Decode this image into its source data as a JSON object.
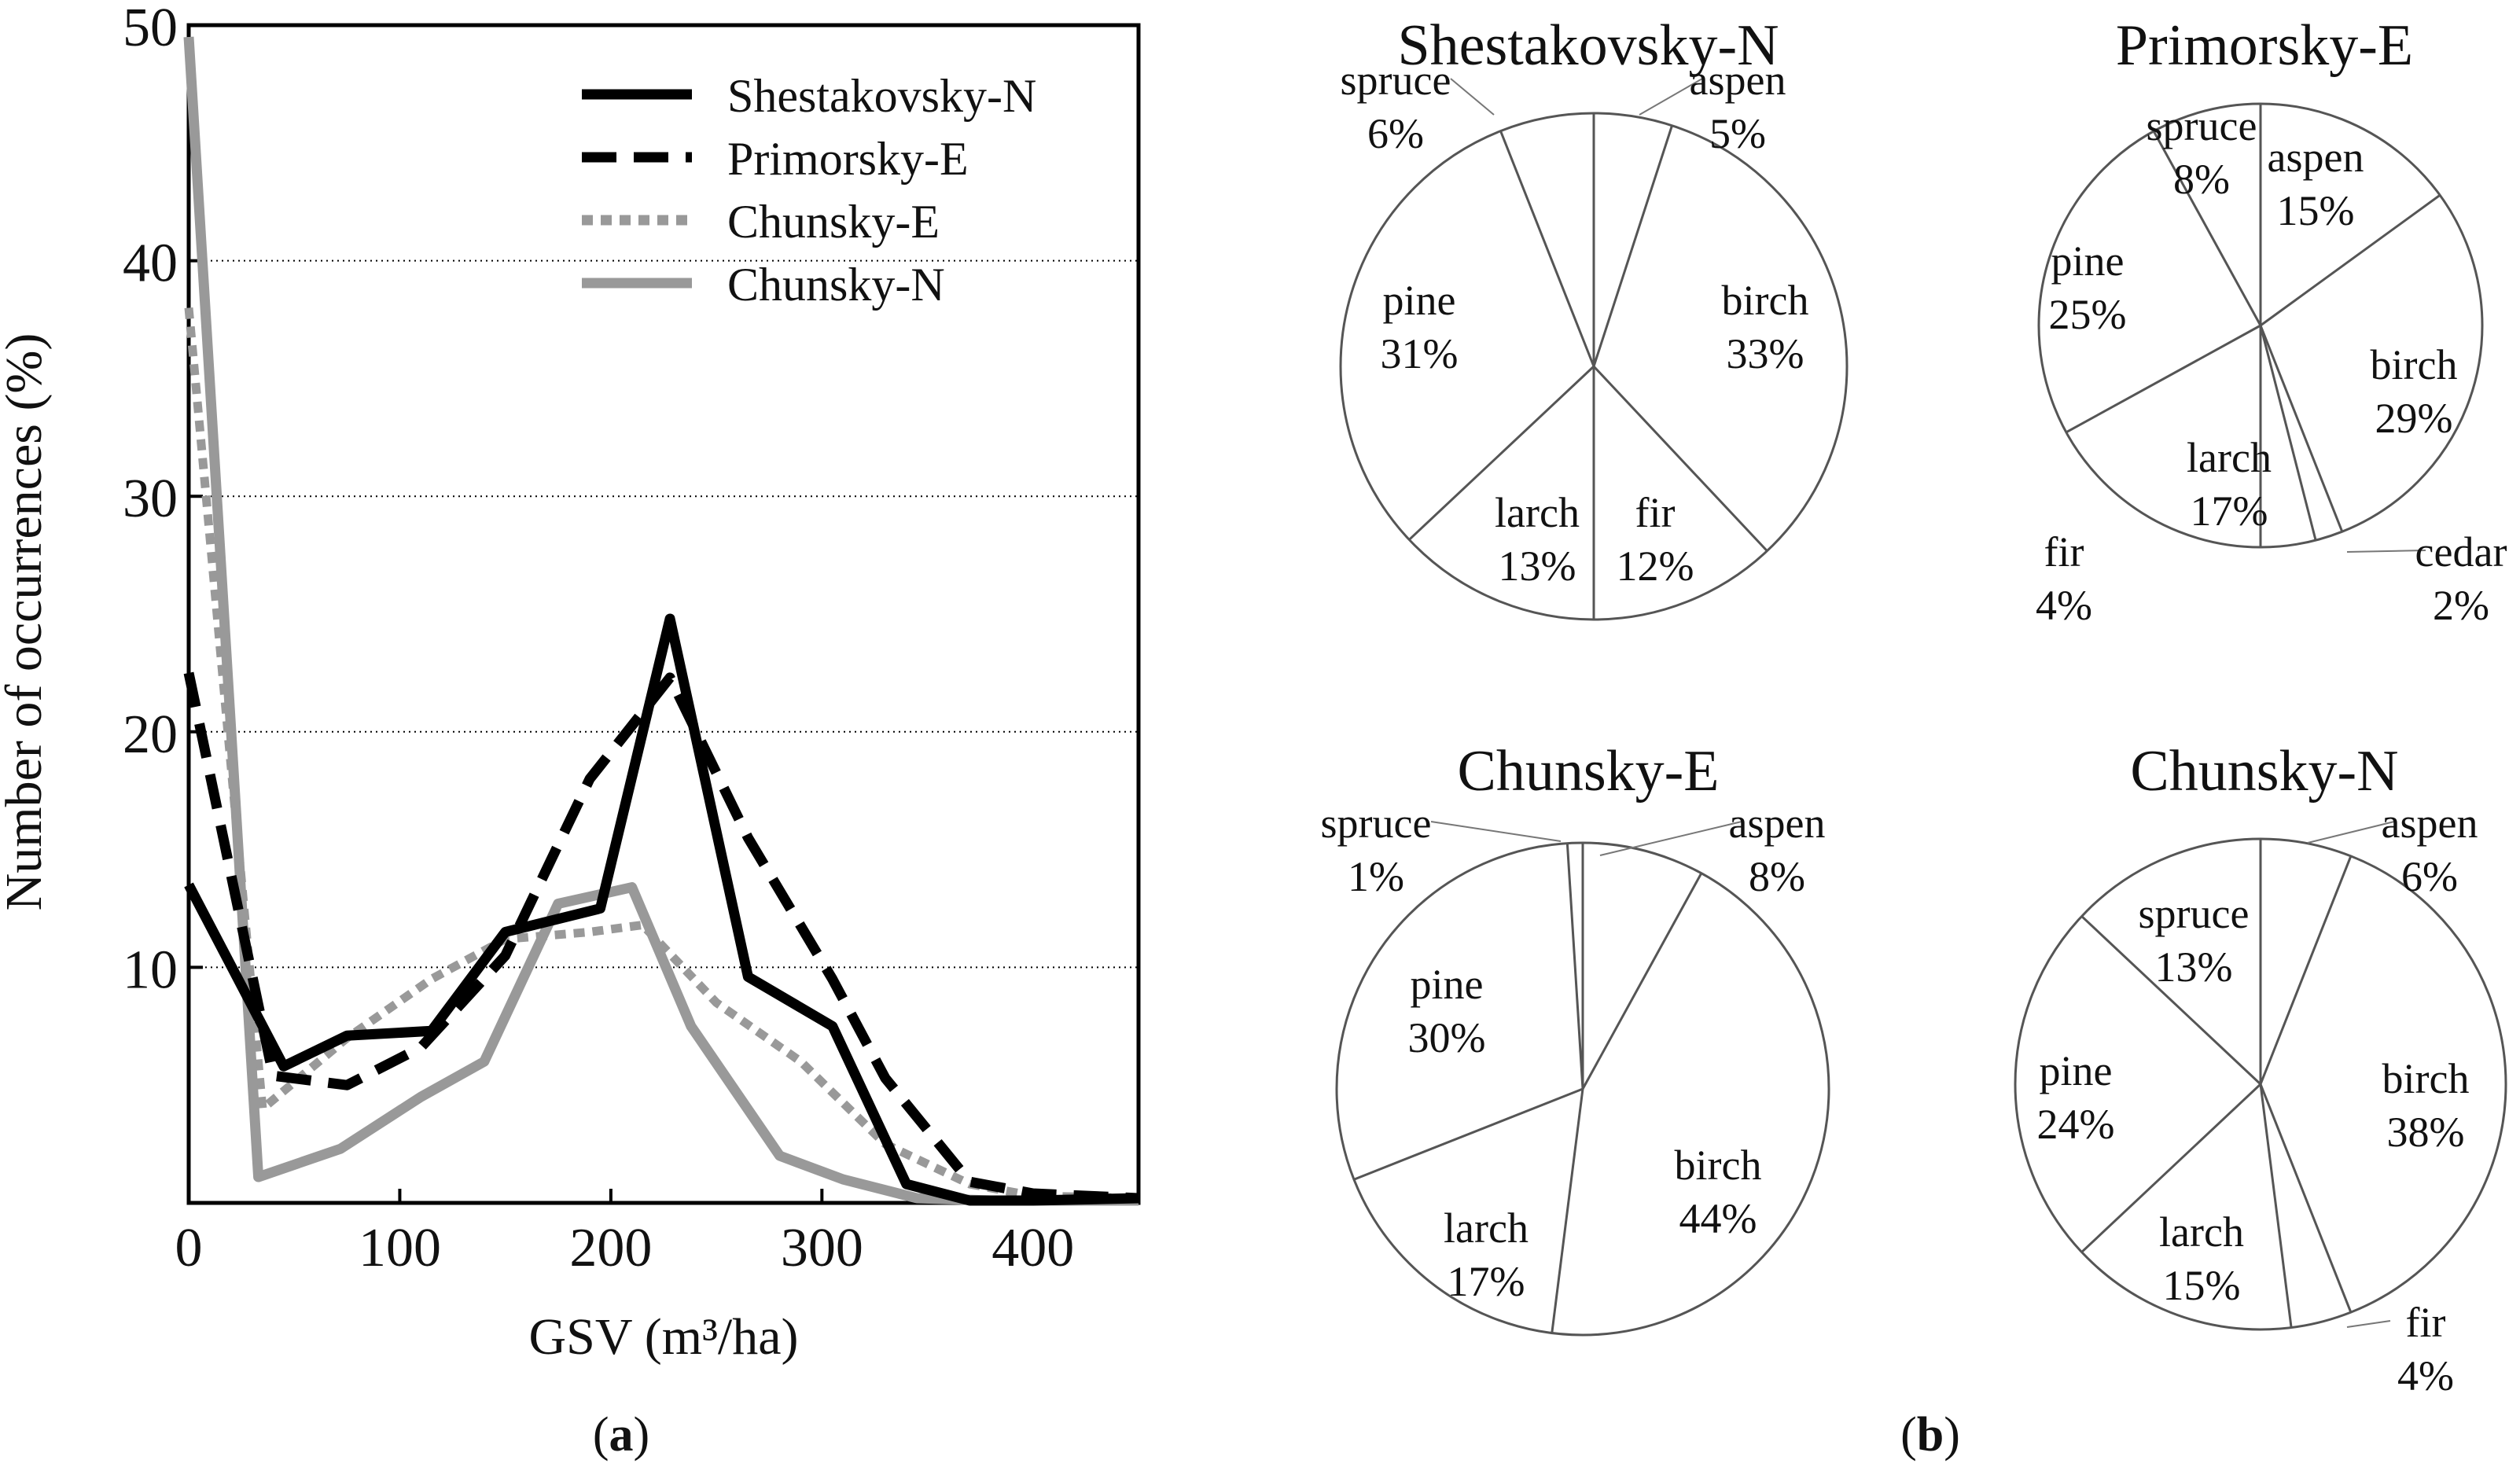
{
  "chart_data": [
    {
      "type": "line",
      "panel": "a",
      "xlabel": "GSV (m³/ha)",
      "ylabel": "Number of occurrences (%)",
      "xlim": [
        0,
        450
      ],
      "ylim": [
        0,
        50
      ],
      "xticks": [
        0,
        100,
        200,
        300,
        400
      ],
      "yticks": [
        10,
        20,
        30,
        40,
        50
      ],
      "grid": "horizontal dotted",
      "legend_position": "top-right",
      "series": [
        {
          "name": "Shestakovsky-N",
          "color": "#000000",
          "dash": "solid",
          "x": [
            0,
            45,
            75,
            115,
            150,
            195,
            228,
            265,
            305,
            340,
            370,
            400,
            450
          ],
          "y": [
            13.5,
            5.8,
            7.1,
            7.3,
            11.5,
            12.5,
            24.8,
            9.6,
            7.5,
            0.8,
            0.1,
            0.1,
            0.2
          ]
        },
        {
          "name": "Primorsky-E",
          "color": "#000000",
          "dash": "dashed",
          "x": [
            0,
            40,
            75,
            110,
            150,
            190,
            228,
            265,
            305,
            330,
            370,
            400,
            450
          ],
          "y": [
            22.5,
            5.4,
            5.0,
            6.6,
            10.5,
            18.0,
            22.3,
            15.5,
            9.5,
            5.3,
            0.9,
            0.4,
            0.2
          ]
        },
        {
          "name": "Chunsky-E",
          "color": "#999999",
          "dash": "dotted",
          "x": [
            0,
            35,
            75,
            115,
            150,
            190,
            215,
            250,
            290,
            330,
            370,
            400,
            450
          ],
          "y": [
            38.0,
            4.0,
            7.0,
            9.5,
            11.2,
            11.5,
            11.8,
            8.5,
            6.0,
            2.5,
            0.8,
            0.3,
            0.2
          ]
        },
        {
          "name": "Chunsky-N",
          "color": "#999999",
          "dash": "solid",
          "x": [
            0,
            33,
            72,
            110,
            140,
            175,
            210,
            238,
            280,
            310,
            345,
            380,
            450
          ],
          "y": [
            49.5,
            1.1,
            2.3,
            4.5,
            6.0,
            12.7,
            13.4,
            7.5,
            2.0,
            1.0,
            0.2,
            0.1,
            0.1
          ]
        }
      ]
    },
    {
      "type": "pie",
      "panel": "b",
      "title": "Shestakovsky-N",
      "slices": [
        {
          "label": "aspen",
          "value": 5,
          "pct": "5%"
        },
        {
          "label": "birch",
          "value": 33,
          "pct": "33%"
        },
        {
          "label": "fir",
          "value": 12,
          "pct": "12%"
        },
        {
          "label": "larch",
          "value": 13,
          "pct": "13%"
        },
        {
          "label": "pine",
          "value": 31,
          "pct": "31%"
        },
        {
          "label": "spruce",
          "value": 6,
          "pct": "6%"
        }
      ]
    },
    {
      "type": "pie",
      "panel": "b",
      "title": "Primorsky-E",
      "slices": [
        {
          "label": "aspen",
          "value": 15,
          "pct": "15%"
        },
        {
          "label": "birch",
          "value": 29,
          "pct": "29%"
        },
        {
          "label": "cedar",
          "value": 2,
          "pct": "2%"
        },
        {
          "label": "fir",
          "value": 4,
          "pct": "4%"
        },
        {
          "label": "larch",
          "value": 17,
          "pct": "17%"
        },
        {
          "label": "pine",
          "value": 25,
          "pct": "25%"
        },
        {
          "label": "spruce",
          "value": 8,
          "pct": "8%"
        }
      ]
    },
    {
      "type": "pie",
      "panel": "b",
      "title": "Chunsky-E",
      "slices": [
        {
          "label": "aspen",
          "value": 8,
          "pct": "8%"
        },
        {
          "label": "birch",
          "value": 44,
          "pct": "44%"
        },
        {
          "label": "larch",
          "value": 17,
          "pct": "17%"
        },
        {
          "label": "pine",
          "value": 30,
          "pct": "30%"
        },
        {
          "label": "spruce",
          "value": 1,
          "pct": "1%"
        }
      ]
    },
    {
      "type": "pie",
      "panel": "b",
      "title": "Chunsky-N",
      "slices": [
        {
          "label": "aspen",
          "value": 6,
          "pct": "6%"
        },
        {
          "label": "birch",
          "value": 38,
          "pct": "38%"
        },
        {
          "label": "fir",
          "value": 4,
          "pct": "4%"
        },
        {
          "label": "larch",
          "value": 15,
          "pct": "15%"
        },
        {
          "label": "pine",
          "value": 24,
          "pct": "24%"
        },
        {
          "label": "spruce",
          "value": 13,
          "pct": "13%"
        }
      ]
    }
  ],
  "captions": {
    "a": {
      "open": "(",
      "letter": "a",
      "close": ")"
    },
    "b": {
      "open": "(",
      "letter": "b",
      "close": ")"
    }
  }
}
